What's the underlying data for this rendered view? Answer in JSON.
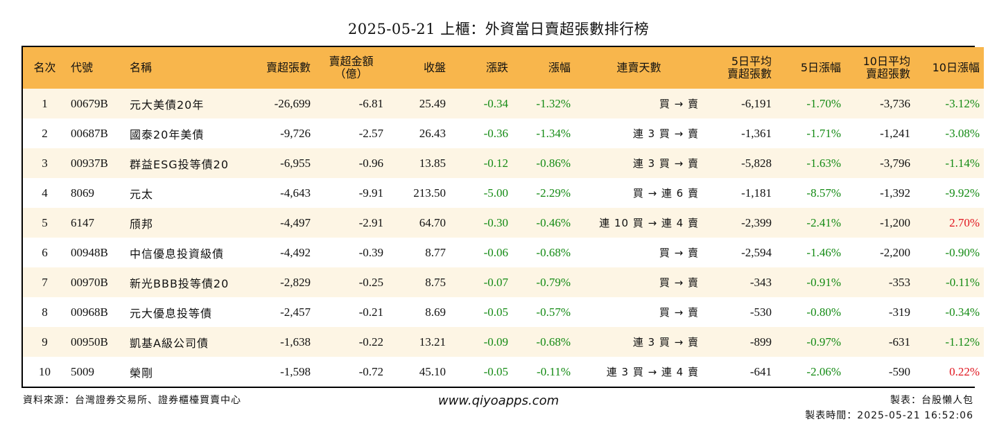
{
  "title": "2025-05-21 上櫃：外資當日賣超張數排行榜",
  "headers": {
    "rank": "名次",
    "code": "代號",
    "name": "名稱",
    "sell_lots": "賣超張數",
    "sell_amount_1": "賣超金額",
    "sell_amount_2": "（億）",
    "close": "收盤",
    "change": "漲跌",
    "change_pct": "漲幅",
    "streak": "連賣天數",
    "avg5_1": "5日平均",
    "avg5_2": "賣超張數",
    "chg5": "5日漲幅",
    "avg10_1": "10日平均",
    "avg10_2": "賣超張數",
    "chg10": "10日漲幅"
  },
  "rows": [
    {
      "rank": "1",
      "code": "00679B",
      "name": "元大美債20年",
      "sell_lots": "-26,699",
      "sell_amount": "-6.81",
      "close": "25.49",
      "change": "-0.34",
      "change_pct": "-1.32%",
      "streak": "買 → 賣",
      "avg5": "-6,191",
      "chg5": "-1.70%",
      "avg10": "-3,736",
      "chg10": "-3.12%"
    },
    {
      "rank": "2",
      "code": "00687B",
      "name": "國泰20年美債",
      "sell_lots": "-9,726",
      "sell_amount": "-2.57",
      "close": "26.43",
      "change": "-0.36",
      "change_pct": "-1.34%",
      "streak": "連 3 買 → 賣",
      "avg5": "-1,361",
      "chg5": "-1.71%",
      "avg10": "-1,241",
      "chg10": "-3.08%"
    },
    {
      "rank": "3",
      "code": "00937B",
      "name": "群益ESG投等債20",
      "sell_lots": "-6,955",
      "sell_amount": "-0.96",
      "close": "13.85",
      "change": "-0.12",
      "change_pct": "-0.86%",
      "streak": "連 3 買 → 賣",
      "avg5": "-5,828",
      "chg5": "-1.63%",
      "avg10": "-3,796",
      "chg10": "-1.14%"
    },
    {
      "rank": "4",
      "code": "8069",
      "name": "元太",
      "sell_lots": "-4,643",
      "sell_amount": "-9.91",
      "close": "213.50",
      "change": "-5.00",
      "change_pct": "-2.29%",
      "streak": "買 → 連 6 賣",
      "avg5": "-1,181",
      "chg5": "-8.57%",
      "avg10": "-1,392",
      "chg10": "-9.92%"
    },
    {
      "rank": "5",
      "code": "6147",
      "name": "頎邦",
      "sell_lots": "-4,497",
      "sell_amount": "-2.91",
      "close": "64.70",
      "change": "-0.30",
      "change_pct": "-0.46%",
      "streak": "連 10 買 → 連 4 賣",
      "avg5": "-2,399",
      "chg5": "-2.41%",
      "avg10": "-1,200",
      "chg10": "2.70%"
    },
    {
      "rank": "6",
      "code": "00948B",
      "name": "中信優息投資級債",
      "sell_lots": "-4,492",
      "sell_amount": "-0.39",
      "close": "8.77",
      "change": "-0.06",
      "change_pct": "-0.68%",
      "streak": "買 → 賣",
      "avg5": "-2,594",
      "chg5": "-1.46%",
      "avg10": "-2,200",
      "chg10": "-0.90%"
    },
    {
      "rank": "7",
      "code": "00970B",
      "name": "新光BBB投等債20",
      "sell_lots": "-2,829",
      "sell_amount": "-0.25",
      "close": "8.75",
      "change": "-0.07",
      "change_pct": "-0.79%",
      "streak": "買 → 賣",
      "avg5": "-343",
      "chg5": "-0.91%",
      "avg10": "-353",
      "chg10": "-0.11%"
    },
    {
      "rank": "8",
      "code": "00968B",
      "name": "元大優息投等債",
      "sell_lots": "-2,457",
      "sell_amount": "-0.21",
      "close": "8.69",
      "change": "-0.05",
      "change_pct": "-0.57%",
      "streak": "買 → 賣",
      "avg5": "-530",
      "chg5": "-0.80%",
      "avg10": "-319",
      "chg10": "-0.34%"
    },
    {
      "rank": "9",
      "code": "00950B",
      "name": "凱基A級公司債",
      "sell_lots": "-1,638",
      "sell_amount": "-0.22",
      "close": "13.21",
      "change": "-0.09",
      "change_pct": "-0.68%",
      "streak": "連 3 買 → 賣",
      "avg5": "-899",
      "chg5": "-0.97%",
      "avg10": "-631",
      "chg10": "-1.12%"
    },
    {
      "rank": "10",
      "code": "5009",
      "name": "榮剛",
      "sell_lots": "-1,598",
      "sell_amount": "-0.72",
      "close": "45.10",
      "change": "-0.05",
      "change_pct": "-0.11%",
      "streak": "連 3 買 → 連 4 賣",
      "avg5": "-641",
      "chg5": "-2.06%",
      "avg10": "-590",
      "chg10": "0.22%"
    }
  ],
  "colors": {
    "header_bg": "#f8b64c",
    "odd_row_bg": "#fdf5e4",
    "negative": "#138a13",
    "positive": "#e0141e"
  },
  "footer": {
    "source": "資料來源：台灣證券交易所、證券櫃檯買賣中心",
    "website": "www.qiyoapps.com",
    "maker": "製表：台股懶人包",
    "made_time": "製表時間：2025-05-21 16:52:06"
  }
}
